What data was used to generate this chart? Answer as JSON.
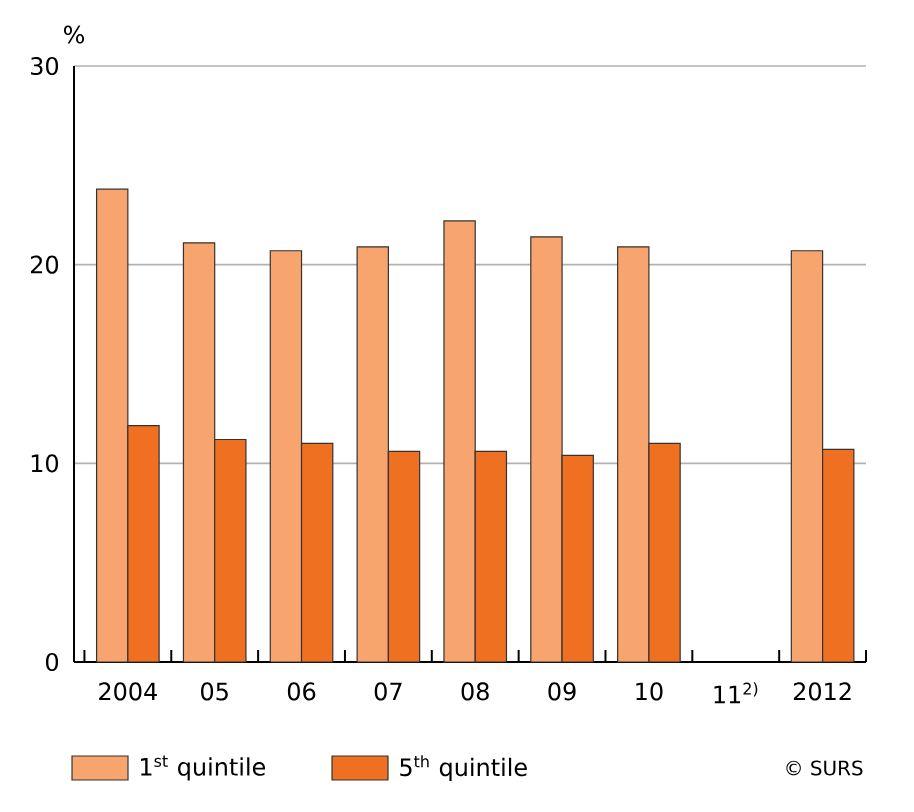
{
  "chart_data": {
    "type": "bar",
    "ylabel": "%",
    "categories": [
      "2004",
      "05",
      "06",
      "07",
      "08",
      "09",
      "10",
      "11$^{2)}$",
      "2012"
    ],
    "series": [
      {
        "name": "1$^{st}$ quintile",
        "color": "#f8a46e",
        "values": [
          23.8,
          21.1,
          20.7,
          20.9,
          22.2,
          21.4,
          20.9,
          null,
          20.7
        ]
      },
      {
        "name": "5$^{th}$ quintile",
        "color": "#f07022",
        "values": [
          11.9,
          11.2,
          11.0,
          10.6,
          10.6,
          10.4,
          11.0,
          null,
          10.7
        ]
      }
    ],
    "ylim": [
      0,
      30
    ],
    "yticks": [
      0,
      10,
      20,
      30
    ],
    "grid": "y",
    "legend": "bottom",
    "annotations": [
      "© SURS"
    ]
  }
}
